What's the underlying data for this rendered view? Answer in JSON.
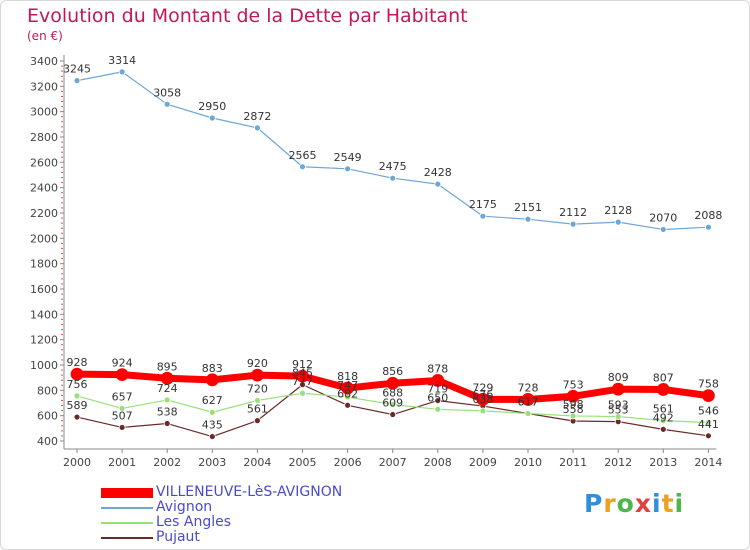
{
  "chart_data": {
    "type": "line",
    "title": "Evolution du Montant de la Dette par Habitant",
    "subtitle": "(en €)",
    "x": [
      "2000",
      "2001",
      "2002",
      "2003",
      "2004",
      "2005",
      "2006",
      "2007",
      "2008",
      "2009",
      "2010",
      "2011",
      "2012",
      "2013",
      "2014"
    ],
    "ylim": [
      400,
      3400
    ],
    "yticks": [
      400,
      600,
      800,
      1000,
      1200,
      1400,
      1600,
      1800,
      2000,
      2200,
      2400,
      2600,
      2800,
      3000,
      3200,
      3400
    ],
    "grid": false,
    "legend_position": "bottom-left",
    "series": [
      {
        "name": "VILLENEUVE-LèS-AVIGNON",
        "color": "#ff0000",
        "values": [
          928,
          924,
          895,
          883,
          920,
          912,
          818,
          856,
          878,
          729,
          728,
          753,
          809,
          807,
          758
        ]
      },
      {
        "name": "Avignon",
        "color": "#6ea6d6",
        "values": [
          3245,
          3314,
          3058,
          2950,
          2872,
          2565,
          2549,
          2475,
          2428,
          2175,
          2151,
          2112,
          2128,
          2070,
          2088
        ]
      },
      {
        "name": "Les Angles",
        "color": "#99e07a",
        "values": [
          756,
          657,
          724,
          627,
          720,
          777,
          747,
          688,
          650,
          638,
          617,
          598,
          593,
          561,
          546
        ]
      },
      {
        "name": "Pujaut",
        "color": "#6b2a2a",
        "values": [
          589,
          507,
          538,
          435,
          561,
          845,
          682,
          609,
          719,
          676,
          617,
          558,
          553,
          492,
          441
        ]
      }
    ]
  },
  "brand": {
    "logo_letters": [
      "P",
      "r",
      "o",
      "x",
      "i",
      "t",
      "i"
    ],
    "logo_colors": [
      "#2f8fdc",
      "#f0a020",
      "#4cb84c",
      "#e04040",
      "#2f8fdc",
      "#f0a020",
      "#4cb84c"
    ]
  }
}
